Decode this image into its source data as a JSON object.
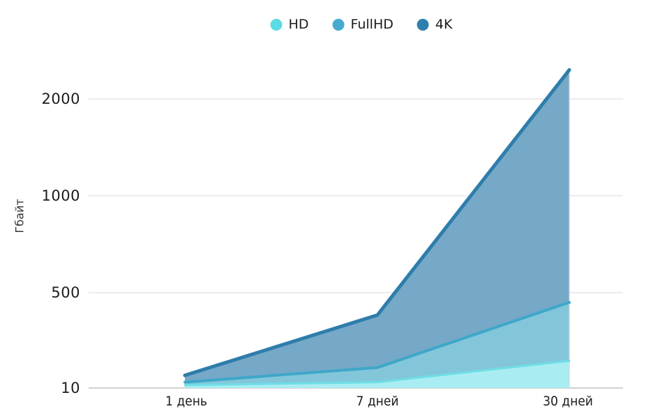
{
  "chart": {
    "y_axis": {
      "title": "Гбайт",
      "ticks": [
        "2000",
        "1000",
        "500",
        "10"
      ]
    }
  },
  "chart_data": {
    "type": "area",
    "title": "",
    "xlabel": "",
    "ylabel": "Гбайт",
    "categories": [
      "1 день",
      "7 дней",
      "30 дней"
    ],
    "series": [
      {
        "name": "HD",
        "values": [
          25,
          40,
          150
        ],
        "color": "#5cdbe3",
        "line_color": "#6edee6",
        "fill_color": "#a9edf2"
      },
      {
        "name": "FullHD",
        "values": [
          40,
          115,
          450
        ],
        "color": "#45abd0",
        "line_color": "#3ea7c9",
        "fill_color": "#83c6da"
      },
      {
        "name": "4K",
        "values": [
          75,
          385,
          2300
        ],
        "color": "#2f7fad",
        "line_color": "#2e7dab",
        "fill_color": "#75a9c7"
      }
    ],
    "y_ticks": [
      10,
      500,
      1000,
      2000
    ],
    "y_scale_note": "non-linear: tick values 10/500/1000/2000 are evenly spaced",
    "grid": "horizontal",
    "legend_position": "top-center",
    "area_style": "overlapping from baseline; 4K painted first (back), HD last (front)",
    "grid_color": "#d9d9d9",
    "baseline_color": "#c2c2c2"
  }
}
